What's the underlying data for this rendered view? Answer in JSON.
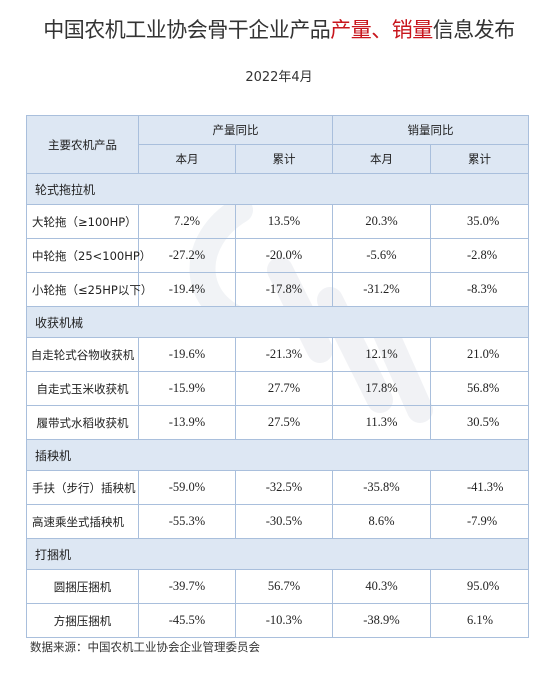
{
  "title": {
    "prefix": "中国农机工业协会骨干企业产品",
    "hl1": "产量",
    "sep": "、",
    "hl2": "销量",
    "suffix": "信息发布"
  },
  "date": "2022年4月",
  "table": {
    "corner_label": "主要农机产品",
    "group_production": "产量同比",
    "group_sales": "销量同比",
    "sub_month": "本月",
    "sub_cumulative": "累计",
    "sections": [
      {
        "title": "轮式拖拉机",
        "rows": [
          {
            "name": "大轮拖（≥100HP）",
            "prod_month": "7.2%",
            "prod_cum": "13.5%",
            "sales_month": "20.3%",
            "sales_cum": "35.0%"
          },
          {
            "name": "中轮拖（25<100HP）",
            "prod_month": "-27.2%",
            "prod_cum": "-20.0%",
            "sales_month": "-5.6%",
            "sales_cum": "-2.8%"
          },
          {
            "name": "小轮拖（≤25HP以下）",
            "prod_month": "-19.4%",
            "prod_cum": "-17.8%",
            "sales_month": "-31.2%",
            "sales_cum": "-8.3%"
          }
        ]
      },
      {
        "title": "收获机械",
        "rows": [
          {
            "name": "自走轮式谷物收获机",
            "prod_month": "-19.6%",
            "prod_cum": "-21.3%",
            "sales_month": "12.1%",
            "sales_cum": "21.0%"
          },
          {
            "name": "自走式玉米收获机",
            "prod_month": "-15.9%",
            "prod_cum": "27.7%",
            "sales_month": "17.8%",
            "sales_cum": "56.8%"
          },
          {
            "name": "履带式水稻收获机",
            "prod_month": "-13.9%",
            "prod_cum": "27.5%",
            "sales_month": "11.3%",
            "sales_cum": "30.5%"
          }
        ]
      },
      {
        "title": "插秧机",
        "rows": [
          {
            "name": "手扶（步行）插秧机",
            "prod_month": "-59.0%",
            "prod_cum": "-32.5%",
            "sales_month": "-35.8%",
            "sales_cum": "-41.3%"
          },
          {
            "name": "高速乘坐式插秧机",
            "prod_month": "-55.3%",
            "prod_cum": "-30.5%",
            "sales_month": "8.6%",
            "sales_cum": "-7.9%"
          }
        ]
      },
      {
        "title": "打捆机",
        "rows": [
          {
            "name": "圆捆压捆机",
            "prod_month": "-39.7%",
            "prod_cum": "56.7%",
            "sales_month": "40.3%",
            "sales_cum": "95.0%"
          },
          {
            "name": "方捆压捆机",
            "prod_month": "-45.5%",
            "prod_cum": "-10.3%",
            "sales_month": "-38.9%",
            "sales_cum": "6.1%"
          }
        ]
      }
    ]
  },
  "source": "数据来源：中国农机工业协会企业管理委员会"
}
